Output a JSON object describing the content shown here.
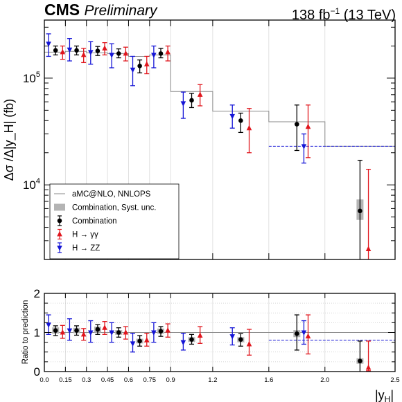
{
  "header": {
    "experiment": "CMS",
    "status": "Preliminary",
    "lumi_value": "138 fb",
    "lumi_exp": "−1",
    "energy": "(13 TeV)"
  },
  "colors": {
    "combination": "#000000",
    "hgg": "#e0161d",
    "hzz": "#1515d6",
    "theory": "#8a8a8a",
    "syst_band": "#b4b4b4",
    "grid": "#d9d9d9"
  },
  "chart_data": [
    {
      "type": "scatter",
      "name": "main",
      "ylabel": "Δσ /Δ|y_H| (fb)",
      "yscale": "log",
      "ylim": [
        2000,
        350000
      ],
      "xlim": [
        0.0,
        2.5
      ],
      "y_tick_labels": [
        {
          "value": 10000,
          "base": "10",
          "exp": "4"
        },
        {
          "value": 100000,
          "base": "10",
          "exp": "5"
        }
      ],
      "bin_edges": [
        0.0,
        0.15,
        0.3,
        0.45,
        0.6,
        0.75,
        0.9,
        1.2,
        1.6,
        2.0,
        2.5
      ],
      "legend": {
        "position": "bottom-left",
        "entries": [
          {
            "key": "theory",
            "label": "aMC@NLO, NNLOPS"
          },
          {
            "key": "band",
            "label": "Combination, Syst. unc."
          },
          {
            "key": "combination",
            "label": "Combination"
          },
          {
            "key": "hgg",
            "label": "H → γγ"
          },
          {
            "key": "hzz",
            "label": "H → ZZ"
          }
        ]
      },
      "theory": [
        175000,
        178000,
        173000,
        170000,
        160000,
        165000,
        75000,
        49000,
        39000,
        23000
      ],
      "series": [
        {
          "key": "hzz",
          "marker": "triangle-down",
          "points": [
            {
              "x": 0.03,
              "y": 210000,
              "lo": 160000,
              "hi": 260000
            },
            {
              "x": 0.18,
              "y": 185000,
              "lo": 145000,
              "hi": 235000
            },
            {
              "x": 0.33,
              "y": 175000,
              "lo": 135000,
              "hi": 220000
            },
            {
              "x": 0.48,
              "y": 165000,
              "lo": 125000,
              "hi": 210000
            },
            {
              "x": 0.63,
              "y": 120000,
              "lo": 85000,
              "hi": 160000
            },
            {
              "x": 0.78,
              "y": 165000,
              "lo": 125000,
              "hi": 200000
            },
            {
              "x": 0.99,
              "y": 58000,
              "lo": 42000,
              "hi": 74000
            },
            {
              "x": 1.34,
              "y": 44000,
              "lo": 34000,
              "hi": 56000
            },
            {
              "x": 1.85,
              "y": 23000,
              "lo": 16000,
              "hi": 30000
            }
          ],
          "ref_line": {
            "x0": 1.6,
            "x1": 2.5,
            "y": 23000
          }
        },
        {
          "key": "combination",
          "marker": "circle",
          "points": [
            {
              "x": 0.08,
              "y": 182000,
              "lo": 165000,
              "hi": 200000
            },
            {
              "x": 0.23,
              "y": 182000,
              "lo": 165000,
              "hi": 200000
            },
            {
              "x": 0.38,
              "y": 180000,
              "lo": 163000,
              "hi": 198000
            },
            {
              "x": 0.53,
              "y": 170000,
              "lo": 155000,
              "hi": 188000
            },
            {
              "x": 0.68,
              "y": 130000,
              "lo": 112000,
              "hi": 148000
            },
            {
              "x": 0.83,
              "y": 170000,
              "lo": 155000,
              "hi": 190000
            },
            {
              "x": 1.05,
              "y": 62000,
              "lo": 53000,
              "hi": 72000
            },
            {
              "x": 1.4,
              "y": 40000,
              "lo": 31000,
              "hi": 47000
            },
            {
              "x": 1.8,
              "y": 37000,
              "lo": 21000,
              "hi": 56000
            },
            {
              "x": 2.25,
              "y": 5700,
              "lo": 800,
              "hi": 17000,
              "syst_lo": 4700,
              "syst_hi": 7300
            }
          ]
        },
        {
          "key": "hgg",
          "marker": "triangle-up",
          "points": [
            {
              "x": 0.13,
              "y": 175000,
              "lo": 150000,
              "hi": 200000
            },
            {
              "x": 0.28,
              "y": 165000,
              "lo": 140000,
              "hi": 190000
            },
            {
              "x": 0.43,
              "y": 190000,
              "lo": 165000,
              "hi": 215000
            },
            {
              "x": 0.58,
              "y": 170000,
              "lo": 145000,
              "hi": 195000
            },
            {
              "x": 0.73,
              "y": 135000,
              "lo": 110000,
              "hi": 160000
            },
            {
              "x": 0.88,
              "y": 175000,
              "lo": 145000,
              "hi": 200000
            },
            {
              "x": 1.11,
              "y": 70000,
              "lo": 55000,
              "hi": 87000
            },
            {
              "x": 1.46,
              "y": 34000,
              "lo": 20000,
              "hi": 52000
            },
            {
              "x": 1.88,
              "y": 35000,
              "lo": 18000,
              "hi": 56000
            },
            {
              "x": 2.31,
              "y": 2500,
              "lo": 1800,
              "hi": 14000
            }
          ]
        }
      ]
    },
    {
      "type": "scatter",
      "name": "ratio",
      "ylabel": "Ratio to prediction",
      "xlabel_base": "|y",
      "xlabel_sub": "H",
      "xlabel_end": "|",
      "ylim": [
        0,
        2
      ],
      "xlim": [
        0.0,
        2.5
      ],
      "y_ticks": [
        0,
        1,
        2
      ],
      "x_ticks": [
        0.0,
        0.15,
        0.3,
        0.45,
        0.6,
        0.75,
        0.9,
        1.2,
        1.6,
        2.0,
        2.5
      ],
      "x_tick_labels": [
        "0.0",
        "0.15",
        "0.3",
        "0.45",
        "0.6",
        "0.75",
        "0.9",
        "1.2",
        "1.6",
        "2.0",
        "2.5"
      ],
      "series": [
        {
          "key": "hzz",
          "marker": "triangle-down",
          "points": [
            {
              "x": 0.03,
              "y": 1.2,
              "lo": 0.95,
              "hi": 1.45
            },
            {
              "x": 0.18,
              "y": 1.05,
              "lo": 0.8,
              "hi": 1.35
            },
            {
              "x": 0.33,
              "y": 1.0,
              "lo": 0.75,
              "hi": 1.3
            },
            {
              "x": 0.48,
              "y": 1.0,
              "lo": 0.75,
              "hi": 1.25
            },
            {
              "x": 0.63,
              "y": 0.72,
              "lo": 0.5,
              "hi": 0.98
            },
            {
              "x": 0.78,
              "y": 1.0,
              "lo": 0.75,
              "hi": 1.25
            },
            {
              "x": 0.99,
              "y": 0.75,
              "lo": 0.55,
              "hi": 0.98
            },
            {
              "x": 1.34,
              "y": 0.9,
              "lo": 0.68,
              "hi": 1.12
            },
            {
              "x": 1.85,
              "y": 1.0,
              "lo": 0.7,
              "hi": 1.3
            }
          ],
          "ref_line": {
            "x0": 1.6,
            "x1": 2.5,
            "y": 0.8
          }
        },
        {
          "key": "combination",
          "marker": "circle",
          "points": [
            {
              "x": 0.08,
              "y": 1.05,
              "lo": 0.92,
              "hi": 1.17,
              "syst_lo": 0.97,
              "syst_hi": 1.13
            },
            {
              "x": 0.23,
              "y": 1.05,
              "lo": 0.93,
              "hi": 1.17,
              "syst_lo": 0.98,
              "syst_hi": 1.12
            },
            {
              "x": 0.38,
              "y": 1.08,
              "lo": 0.95,
              "hi": 1.2,
              "syst_lo": 1.0,
              "syst_hi": 1.15
            },
            {
              "x": 0.53,
              "y": 1.0,
              "lo": 0.88,
              "hi": 1.12,
              "syst_lo": 0.94,
              "syst_hi": 1.06
            },
            {
              "x": 0.68,
              "y": 0.78,
              "lo": 0.65,
              "hi": 0.92,
              "syst_lo": 0.72,
              "syst_hi": 0.84
            },
            {
              "x": 0.83,
              "y": 1.03,
              "lo": 0.9,
              "hi": 1.15,
              "syst_lo": 0.97,
              "syst_hi": 1.1
            },
            {
              "x": 1.05,
              "y": 0.82,
              "lo": 0.7,
              "hi": 0.95,
              "syst_lo": 0.76,
              "syst_hi": 0.88
            },
            {
              "x": 1.4,
              "y": 0.82,
              "lo": 0.65,
              "hi": 0.97,
              "syst_lo": 0.75,
              "syst_hi": 0.88
            },
            {
              "x": 1.8,
              "y": 0.97,
              "lo": 0.55,
              "hi": 1.45,
              "syst_lo": 0.88,
              "syst_hi": 1.06
            },
            {
              "x": 2.25,
              "y": 0.27,
              "lo": 0.0,
              "hi": 0.78,
              "syst_lo": 0.2,
              "syst_hi": 0.34
            }
          ]
        },
        {
          "key": "hgg",
          "marker": "triangle-up",
          "points": [
            {
              "x": 0.13,
              "y": 1.0,
              "lo": 0.85,
              "hi": 1.18
            },
            {
              "x": 0.28,
              "y": 0.95,
              "lo": 0.8,
              "hi": 1.1
            },
            {
              "x": 0.43,
              "y": 1.12,
              "lo": 0.95,
              "hi": 1.28
            },
            {
              "x": 0.58,
              "y": 1.0,
              "lo": 0.83,
              "hi": 1.15
            },
            {
              "x": 0.73,
              "y": 0.8,
              "lo": 0.65,
              "hi": 0.98
            },
            {
              "x": 0.88,
              "y": 1.05,
              "lo": 0.88,
              "hi": 1.22
            },
            {
              "x": 1.11,
              "y": 0.92,
              "lo": 0.72,
              "hi": 1.15
            },
            {
              "x": 1.46,
              "y": 0.7,
              "lo": 0.42,
              "hi": 1.08
            },
            {
              "x": 1.88,
              "y": 0.9,
              "lo": 0.45,
              "hi": 1.45
            },
            {
              "x": 2.31,
              "y": 0.1,
              "lo": 0.02,
              "hi": 0.78
            }
          ]
        }
      ]
    }
  ]
}
